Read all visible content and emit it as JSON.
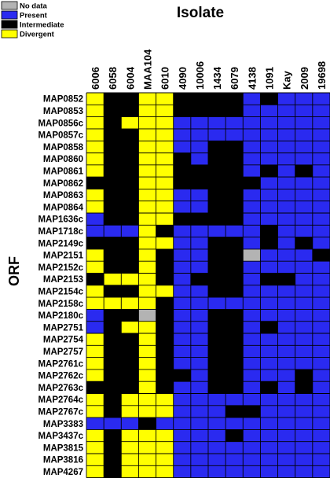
{
  "chart_data": {
    "type": "heatmap",
    "title": "Isolate",
    "ylabel": "ORF",
    "legend_position": "top-left",
    "legend": [
      {
        "key": "N",
        "label": "No data",
        "color": "#b3b3b3"
      },
      {
        "key": "P",
        "label": "Present",
        "color": "#2a2af0"
      },
      {
        "key": "I",
        "label": "Intermediate",
        "color": "#000000"
      },
      {
        "key": "D",
        "label": "Divergent",
        "color": "#ffff00"
      }
    ],
    "isolates": [
      "6006",
      "6058",
      "6004",
      "MAA104",
      "6010",
      "4090",
      "10006",
      "1434",
      "6079",
      "4138",
      "1091",
      "Kay",
      "2009",
      "19698"
    ],
    "orfs": [
      "MAP0852",
      "MAP0853",
      "MAP0856c",
      "MAP0857c",
      "MAP0858",
      "MAP0860",
      "MAP0861",
      "MAP0862",
      "MAP0863",
      "MAP0864",
      "MAP1636c",
      "MAP1718c",
      "MAP2149c",
      "MAP2151",
      "MAP2152c",
      "MAP2153",
      "MAP2154c",
      "MAP2158c",
      "MAP2180c",
      "MAP2751",
      "MAP2754",
      "MAP2757",
      "MAP2761c",
      "MAP2762c",
      "MAP2763c",
      "MAP2764c",
      "MAP2767c",
      "MAP3383",
      "MAP3437c",
      "MAP3815",
      "MAP3816",
      "MAP4267"
    ],
    "values": [
      "DIIDDIIIIPIPPP",
      "DIIDDIIIIPPPPP",
      "DIDDDPPPPPPPPP",
      "DIIDDPPPPPPPPP",
      "DIIDDPPIIPPPPP",
      "DIIDDIPIIPPPPP",
      "DIIDDIIIIPIPIP",
      "IIIDDIIIIIPPPP",
      "DIIDDPPIIPPPPP",
      "DIIDDPPIIPPPPP",
      "PIIDDIIIIPPPPP",
      "PPPDIPPPPPIPPP",
      "IIIDDPPIIPIPIP",
      "DIIDIPPIINPPPI",
      "DIIDIPPIIPPPPP",
      "IDDDIPIIIPIIPP",
      "DIIDDPPIIPPPPP",
      "DDDDIPPPPPPPPP",
      "PIINIPPIIPPPPP",
      "PIDDIPPIIPIPPP",
      "DIIDIPPIIPPPPP",
      "DIIDIPPIIPPPPP",
      "DIIDIPPIIPPPPP",
      "DIIDIIPIIPPPIP",
      "IIIDIPPIIPIPIP",
      "DIDDDPPPPPPPPP",
      "DIDDDPPPIIPPPP",
      "PPPIPPPPPPPPPP",
      "DIDDDPPPIPPPPP",
      "DIDDDPPPPPPPPP",
      "DIDDDPPPPPPPPP",
      "DIDDDPPPPPPPPP"
    ]
  }
}
